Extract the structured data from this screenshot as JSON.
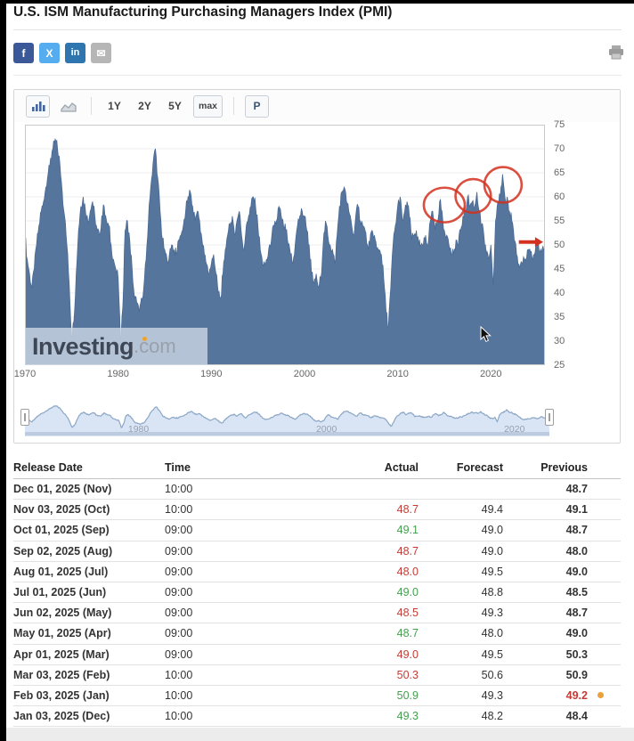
{
  "page": {
    "title": "U.S. ISM Manufacturing Purchasing Managers Index (PMI)"
  },
  "share": {
    "buttons": [
      {
        "name": "facebook",
        "glyph": "f",
        "color": "#3b5998"
      },
      {
        "name": "x-twitter",
        "glyph": "X",
        "color": "#55acee"
      },
      {
        "name": "linkedin",
        "glyph": "in",
        "color": "#2f76b0"
      },
      {
        "name": "email",
        "glyph": "✉",
        "color": "#b6b6b6"
      }
    ]
  },
  "toolbar": {
    "chart_types": [
      "bar-chart",
      "area-chart"
    ],
    "ranges": [
      "1Y",
      "2Y",
      "5Y",
      "max"
    ],
    "selected_range": "max",
    "p_label": "P"
  },
  "watermark": {
    "brand": "Investing",
    "suffix": ".com"
  },
  "chart_data": {
    "type": "area",
    "title": "U.S. ISM Manufacturing PMI, monthly, max range",
    "xlim": [
      1970,
      2025.8
    ],
    "ylim": [
      25,
      75
    ],
    "y_ticks": [
      75,
      70,
      65,
      60,
      55,
      50,
      45,
      40,
      35,
      30,
      25
    ],
    "x_ticks": [
      1970,
      1980,
      1990,
      2000,
      2010,
      2020
    ],
    "grid": "horizontal",
    "legend": "none",
    "axis_side": "right",
    "area_color": "#56759d",
    "line_color": "#4a6a94",
    "series": [
      {
        "name": "ISM Manufacturing PMI",
        "start_year": 1970,
        "step_years": 0.25,
        "values": [
          52,
          47,
          44,
          41,
          45,
          50,
          54,
          57,
          59,
          62,
          65,
          68,
          70,
          72,
          70,
          67,
          61,
          56,
          50,
          42,
          31,
          34,
          44,
          53,
          58,
          60,
          57,
          55,
          57,
          59,
          56,
          53,
          52,
          56,
          58,
          55,
          54,
          50,
          47,
          45,
          43,
          30,
          37,
          53,
          55,
          51,
          45,
          39,
          38,
          36,
          39,
          41,
          47,
          55,
          62,
          67,
          70,
          64,
          57,
          51,
          49,
          47,
          48,
          50,
          49,
          48,
          51,
          52,
          54,
          57,
          60,
          61,
          58,
          55,
          57,
          55,
          51,
          48,
          46,
          44,
          46,
          48,
          44,
          40,
          39,
          44,
          49,
          52,
          54,
          56,
          52,
          55,
          57,
          52,
          49,
          54,
          56,
          58,
          60,
          58,
          54,
          49,
          46,
          46,
          47,
          50,
          52,
          54,
          55,
          58,
          56,
          54,
          53,
          50,
          48,
          46,
          50,
          54,
          56,
          57,
          56,
          53,
          50,
          44,
          42,
          44,
          41,
          43,
          50,
          55,
          52,
          50,
          49,
          46,
          52,
          58,
          61,
          62,
          59,
          57,
          55,
          52,
          56,
          58,
          55,
          54,
          53,
          50,
          50,
          53,
          52,
          49,
          49,
          48,
          43,
          36,
          33,
          41,
          50,
          54,
          58,
          60,
          55,
          57,
          59,
          56,
          51,
          52,
          53,
          50,
          50,
          50,
          52,
          50,
          55,
          57,
          53,
          55,
          59,
          57,
          53,
          52,
          50,
          48,
          48,
          51,
          50,
          53,
          56,
          57,
          60,
          58,
          59,
          58,
          61,
          57,
          54,
          52,
          48,
          47,
          50,
          41.5,
          55,
          59,
          60,
          64.7,
          60,
          60,
          57,
          55,
          51,
          48,
          46,
          46.5,
          47.5,
          47,
          49,
          48.5,
          47,
          48.5,
          50.9,
          48.5,
          49.1,
          48.7
        ]
      }
    ],
    "navigator": {
      "labels": [
        {
          "text": "1980",
          "year": 1980
        },
        {
          "text": "2000",
          "year": 2000
        },
        {
          "text": "2020",
          "year": 2020
        }
      ],
      "fill": "#d9e5f4",
      "line": "#8ba6c6",
      "base_bar": "#bccbdf"
    },
    "annotations": {
      "color": "#d3301f",
      "circles": [
        {
          "x": 2015.0,
          "y": 58.3,
          "rx": 2.2,
          "ry": 3.6
        },
        {
          "x": 2018.1,
          "y": 60.2,
          "rx": 1.9,
          "ry": 3.5
        },
        {
          "x": 2021.3,
          "y": 62.5,
          "rx": 2.0,
          "ry": 3.7
        }
      ],
      "arrow": {
        "x1": 2023.0,
        "x2": 2025.6,
        "y": 50.6
      }
    }
  },
  "table": {
    "headers": [
      "Release Date",
      "Time",
      "Actual",
      "Forecast",
      "Previous"
    ],
    "colors": {
      "positive": "#44a04e",
      "negative": "#c43c35",
      "revised_dot": "#e9a13b"
    },
    "rows": [
      {
        "date": "Dec 01, 2025 (Nov)",
        "time": "10:00",
        "actual": "",
        "actual_color": "",
        "forecast": "",
        "previous": "48.7",
        "previous_color": "",
        "revised": false
      },
      {
        "date": "Nov 03, 2025 (Oct)",
        "time": "10:00",
        "actual": "48.7",
        "actual_color": "red",
        "forecast": "49.4",
        "previous": "49.1",
        "previous_color": "",
        "revised": false
      },
      {
        "date": "Oct 01, 2025 (Sep)",
        "time": "09:00",
        "actual": "49.1",
        "actual_color": "green",
        "forecast": "49.0",
        "previous": "48.7",
        "previous_color": "",
        "revised": false
      },
      {
        "date": "Sep 02, 2025 (Aug)",
        "time": "09:00",
        "actual": "48.7",
        "actual_color": "red",
        "forecast": "49.0",
        "previous": "48.0",
        "previous_color": "",
        "revised": false
      },
      {
        "date": "Aug 01, 2025 (Jul)",
        "time": "09:00",
        "actual": "48.0",
        "actual_color": "red",
        "forecast": "49.5",
        "previous": "49.0",
        "previous_color": "",
        "revised": false
      },
      {
        "date": "Jul 01, 2025 (Jun)",
        "time": "09:00",
        "actual": "49.0",
        "actual_color": "green",
        "forecast": "48.8",
        "previous": "48.5",
        "previous_color": "",
        "revised": false
      },
      {
        "date": "Jun 02, 2025 (May)",
        "time": "09:00",
        "actual": "48.5",
        "actual_color": "red",
        "forecast": "49.3",
        "previous": "48.7",
        "previous_color": "",
        "revised": false
      },
      {
        "date": "May 01, 2025 (Apr)",
        "time": "09:00",
        "actual": "48.7",
        "actual_color": "green",
        "forecast": "48.0",
        "previous": "49.0",
        "previous_color": "",
        "revised": false
      },
      {
        "date": "Apr 01, 2025 (Mar)",
        "time": "09:00",
        "actual": "49.0",
        "actual_color": "red",
        "forecast": "49.5",
        "previous": "50.3",
        "previous_color": "",
        "revised": false
      },
      {
        "date": "Mar 03, 2025 (Feb)",
        "time": "10:00",
        "actual": "50.3",
        "actual_color": "red",
        "forecast": "50.6",
        "previous": "50.9",
        "previous_color": "",
        "revised": false
      },
      {
        "date": "Feb 03, 2025 (Jan)",
        "time": "10:00",
        "actual": "50.9",
        "actual_color": "green",
        "forecast": "49.3",
        "previous": "49.2",
        "previous_color": "red",
        "revised": true
      },
      {
        "date": "Jan 03, 2025 (Dec)",
        "time": "10:00",
        "actual": "49.3",
        "actual_color": "green",
        "forecast": "48.2",
        "previous": "48.4",
        "previous_color": "",
        "revised": false
      }
    ]
  }
}
